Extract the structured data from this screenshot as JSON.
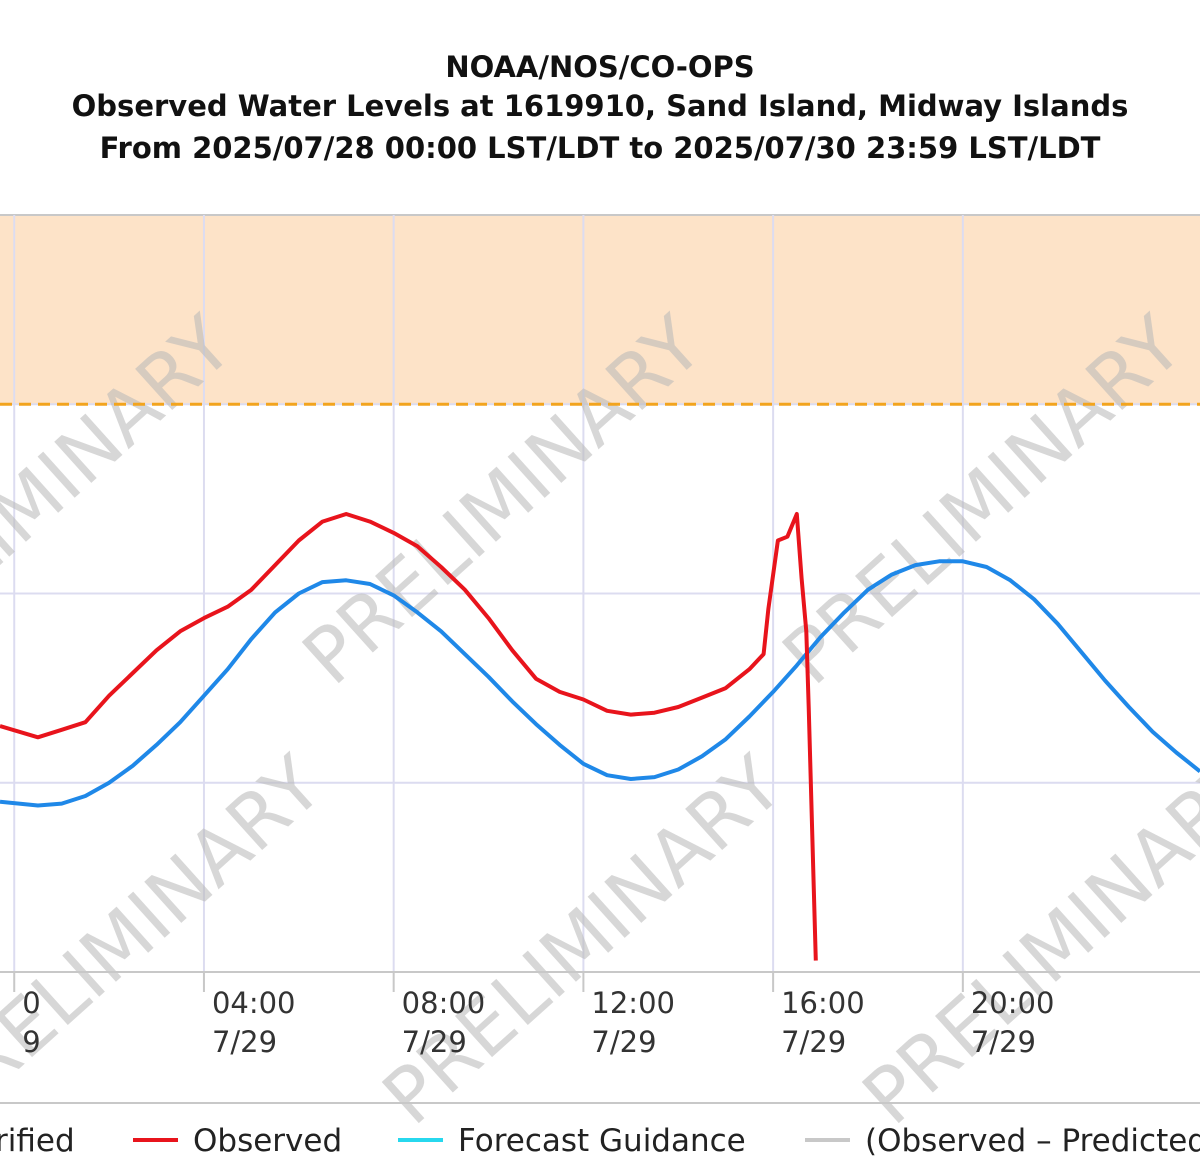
{
  "chart_data": {
    "type": "line",
    "title_lines": [
      "NOAA/NOS/CO-OPS",
      "Observed Water Levels at 1619910, Sand Island, Midway Islands",
      "From 2025/07/28 00:00 LST/LDT to 2025/07/30 23:59 LST/LDT"
    ],
    "watermark": "PRELIMINARY",
    "x_axis": {
      "range_hours": [
        -0.3,
        25.0
      ],
      "ticks": [
        {
          "hour": 0,
          "time": "0",
          "date": "9"
        },
        {
          "hour": 4,
          "time": "04:00",
          "date": "7/29"
        },
        {
          "hour": 8,
          "time": "08:00",
          "date": "7/29"
        },
        {
          "hour": 12,
          "time": "12:00",
          "date": "7/29"
        },
        {
          "hour": 16,
          "time": "16:00",
          "date": "7/29"
        },
        {
          "hour": 20,
          "time": "20:00",
          "date": "7/29"
        }
      ]
    },
    "y_axis": {
      "range": [
        0,
        4
      ],
      "gridlines": [
        1,
        2,
        3,
        4
      ],
      "threshold": 3.0
    },
    "colors": {
      "observed": "#e8141c",
      "predicted": "#1f88e8",
      "forecast": "#27d8ee",
      "residual": "#c8c8c8",
      "threshold": "#f2a41e",
      "threshold_band": "#fde3c8",
      "grid": "#dcdcf0"
    },
    "series": [
      {
        "name": "Observed",
        "x": [
          -0.3,
          0.5,
          1.0,
          1.5,
          2.0,
          2.5,
          3.0,
          3.5,
          4.0,
          4.5,
          5.0,
          5.5,
          6.0,
          6.5,
          7.0,
          7.5,
          8.0,
          8.5,
          9.0,
          9.5,
          10.0,
          10.5,
          11.0,
          11.5,
          12.0,
          12.5,
          13.0,
          13.5,
          14.0,
          14.5,
          15.0,
          15.5,
          15.8,
          15.9,
          16.1,
          16.3,
          16.5,
          16.6,
          16.7,
          16.75,
          16.9
        ],
        "y": [
          1.3,
          1.24,
          1.28,
          1.32,
          1.46,
          1.58,
          1.7,
          1.8,
          1.87,
          1.93,
          2.02,
          2.15,
          2.28,
          2.38,
          2.42,
          2.38,
          2.32,
          2.25,
          2.14,
          2.02,
          1.87,
          1.7,
          1.55,
          1.48,
          1.44,
          1.38,
          1.36,
          1.37,
          1.4,
          1.45,
          1.5,
          1.6,
          1.68,
          1.92,
          2.28,
          2.3,
          2.42,
          2.08,
          1.8,
          1.4,
          0.06
        ]
      },
      {
        "name": "Predicted",
        "x": [
          -0.3,
          0.5,
          1.0,
          1.5,
          2.0,
          2.5,
          3.0,
          3.5,
          4.0,
          4.5,
          5.0,
          5.5,
          6.0,
          6.5,
          7.0,
          7.5,
          8.0,
          8.5,
          9.0,
          9.5,
          10.0,
          10.5,
          11.0,
          11.5,
          12.0,
          12.5,
          13.0,
          13.5,
          14.0,
          14.5,
          15.0,
          15.5,
          16.0,
          16.5,
          17.0,
          17.5,
          18.0,
          18.5,
          19.0,
          19.5,
          20.0,
          20.5,
          21.0,
          21.5,
          22.0,
          22.5,
          23.0,
          23.5,
          24.0,
          24.5,
          25.0
        ],
        "y": [
          0.9,
          0.88,
          0.89,
          0.93,
          1.0,
          1.09,
          1.2,
          1.32,
          1.46,
          1.6,
          1.76,
          1.9,
          2.0,
          2.06,
          2.07,
          2.05,
          1.99,
          1.9,
          1.8,
          1.68,
          1.56,
          1.43,
          1.31,
          1.2,
          1.1,
          1.04,
          1.02,
          1.03,
          1.07,
          1.14,
          1.23,
          1.35,
          1.48,
          1.62,
          1.77,
          1.9,
          2.02,
          2.1,
          2.15,
          2.17,
          2.17,
          2.14,
          2.07,
          1.97,
          1.84,
          1.69,
          1.54,
          1.4,
          1.27,
          1.16,
          1.06
        ]
      }
    ],
    "legend": [
      {
        "label": "rified",
        "style": "text-only"
      },
      {
        "label": "Observed",
        "color": "#e8141c"
      },
      {
        "label": "Forecast Guidance",
        "color": "#27d8ee"
      },
      {
        "label": "(Observed – Predicted",
        "color": "#c8c8c8",
        "muted": true
      }
    ]
  }
}
